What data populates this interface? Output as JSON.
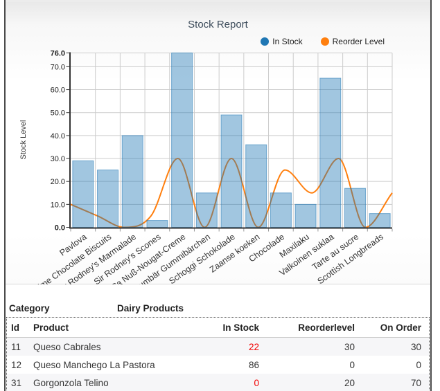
{
  "chart": {
    "title": "Stock Report",
    "y_axis_title": "Stock Level",
    "legend": [
      {
        "label": "In Stock",
        "color": "#1f77b4"
      },
      {
        "label": "Reorder Level",
        "color": "#ff7f0e"
      }
    ]
  },
  "chart_data": {
    "type": "bar",
    "title": "Stock Report",
    "ylabel": "Stock Level",
    "ylim": [
      0,
      76
    ],
    "yticks": [
      0,
      10,
      20,
      30,
      40,
      50,
      60,
      70,
      76
    ],
    "grid": true,
    "legend_position": "top-right",
    "categories": [
      "Pavlova",
      "Teatime Chocolate Biscuits",
      "Sir Rodney's Marmalade",
      "Sir Rodney's Scones",
      "NuNuCa Nuß-Nougat-Creme",
      "Gumbär Gummibärchen",
      "Schoggi Schokolade",
      "Zaanse koeken",
      "Chocolade",
      "Maxilaku",
      "Valkoinen suklaa",
      "Tarte au sucre",
      "Scottish Longbreads"
    ],
    "series": [
      {
        "name": "In Stock",
        "type": "bar",
        "color": "#1f77b4",
        "fill_opacity": 0.42,
        "values": [
          29,
          25,
          40,
          3,
          76,
          15,
          49,
          36,
          15,
          10,
          65,
          17,
          6
        ]
      },
      {
        "name": "Reorder Level",
        "type": "line",
        "color": "#ff7f0e",
        "smooth": true,
        "values": [
          10,
          5,
          0,
          5,
          30,
          0,
          30,
          0,
          25,
          15,
          30,
          0,
          15
        ]
      }
    ]
  },
  "table": {
    "category_label": "Category",
    "category_value": "Dairy Products",
    "columns": [
      "Id",
      "Product",
      "In Stock",
      "Reorderlevel",
      "On Order"
    ],
    "low_stock_color": "#f20000",
    "rows": [
      {
        "id": "11",
        "product": "Queso Cabrales",
        "in_stock": "22",
        "in_stock_low": true,
        "reorder_level": "30",
        "on_order": "30"
      },
      {
        "id": "12",
        "product": "Queso Manchego La Pastora",
        "in_stock": "86",
        "in_stock_low": false,
        "reorder_level": "0",
        "on_order": "0"
      },
      {
        "id": "31",
        "product": "Gorgonzola Telino",
        "in_stock": "0",
        "in_stock_low": true,
        "reorder_level": "20",
        "on_order": "70"
      }
    ]
  }
}
